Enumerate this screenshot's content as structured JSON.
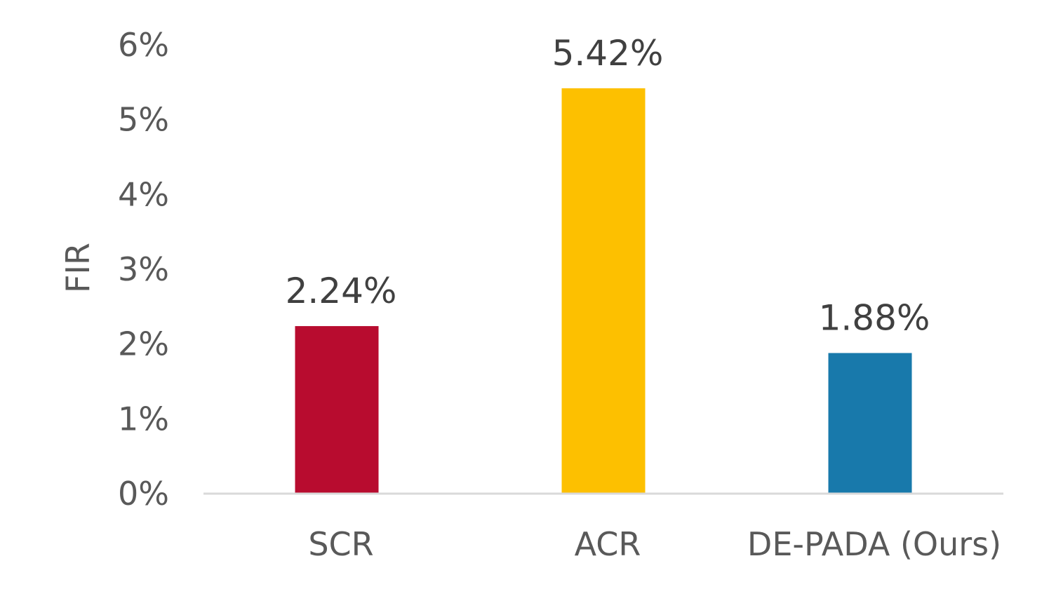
{
  "chart_data": {
    "type": "bar",
    "title": "",
    "xlabel": "",
    "ylabel": "FIR",
    "categories": [
      "SCR",
      "ACR",
      "DE-PADA (Ours)"
    ],
    "values": [
      2.24,
      5.42,
      1.88
    ],
    "data_labels": [
      "2.24%",
      "5.42%",
      "1.88%"
    ],
    "bar_colors": [
      "#b80c2f",
      "#fdc000",
      "#1879ab"
    ],
    "ylim": [
      0,
      6
    ],
    "yticks": [
      0,
      1,
      2,
      3,
      4,
      5,
      6
    ],
    "ytick_labels": [
      "0%",
      "1%",
      "2%",
      "3%",
      "4%",
      "5%",
      "6%"
    ],
    "grid": false,
    "legend": "none",
    "baseline_color": "#d9d9d9"
  }
}
